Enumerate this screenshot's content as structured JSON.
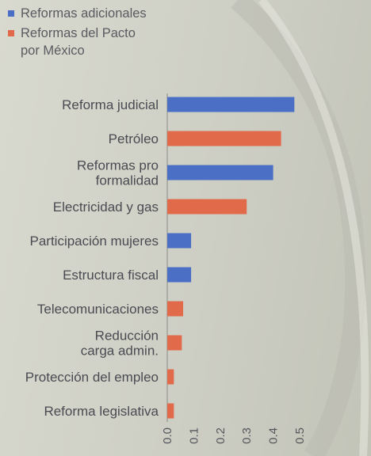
{
  "chart_data": {
    "type": "bar",
    "orientation": "horizontal",
    "categories": [
      [
        "Reforma judicial"
      ],
      [
        "Petróleo"
      ],
      [
        "Reformas pro",
        "formalidad"
      ],
      [
        "Electricidad y gas"
      ],
      [
        "Participación mujeres"
      ],
      [
        "Estructura fiscal"
      ],
      [
        "Telecomunicaciones"
      ],
      [
        "Reducción",
        "carga admin."
      ],
      [
        "Protección del empleo"
      ],
      [
        "Reforma legislativa"
      ]
    ],
    "values": [
      0.48,
      0.43,
      0.4,
      0.3,
      0.09,
      0.09,
      0.06,
      0.055,
      0.025,
      0.025
    ],
    "bar_series": [
      "Reformas adicionales",
      "Reformas del Pacto por México",
      "Reformas adicionales",
      "Reformas del Pacto por México",
      "Reformas adicionales",
      "Reformas adicionales",
      "Reformas del Pacto por México",
      "Reformas del Pacto por México",
      "Reformas del Pacto por México",
      "Reformas del Pacto por México"
    ],
    "series": [
      {
        "name": "Reformas adicionales",
        "color": "#4a6fc4",
        "legend_lines": [
          "Reformas adicionales"
        ]
      },
      {
        "name": "Reformas del Pacto por México",
        "color": "#e06a4a",
        "legend_lines": [
          "Reformas del Pacto",
          "por México"
        ]
      }
    ],
    "xticks": [
      "0.0",
      "0.1",
      "0.2",
      "0.3",
      "0.4",
      "0.5"
    ],
    "xlim": [
      0,
      0.5
    ],
    "title": "",
    "xlabel": "",
    "ylabel": "",
    "grid": false,
    "legend": "top-left"
  }
}
